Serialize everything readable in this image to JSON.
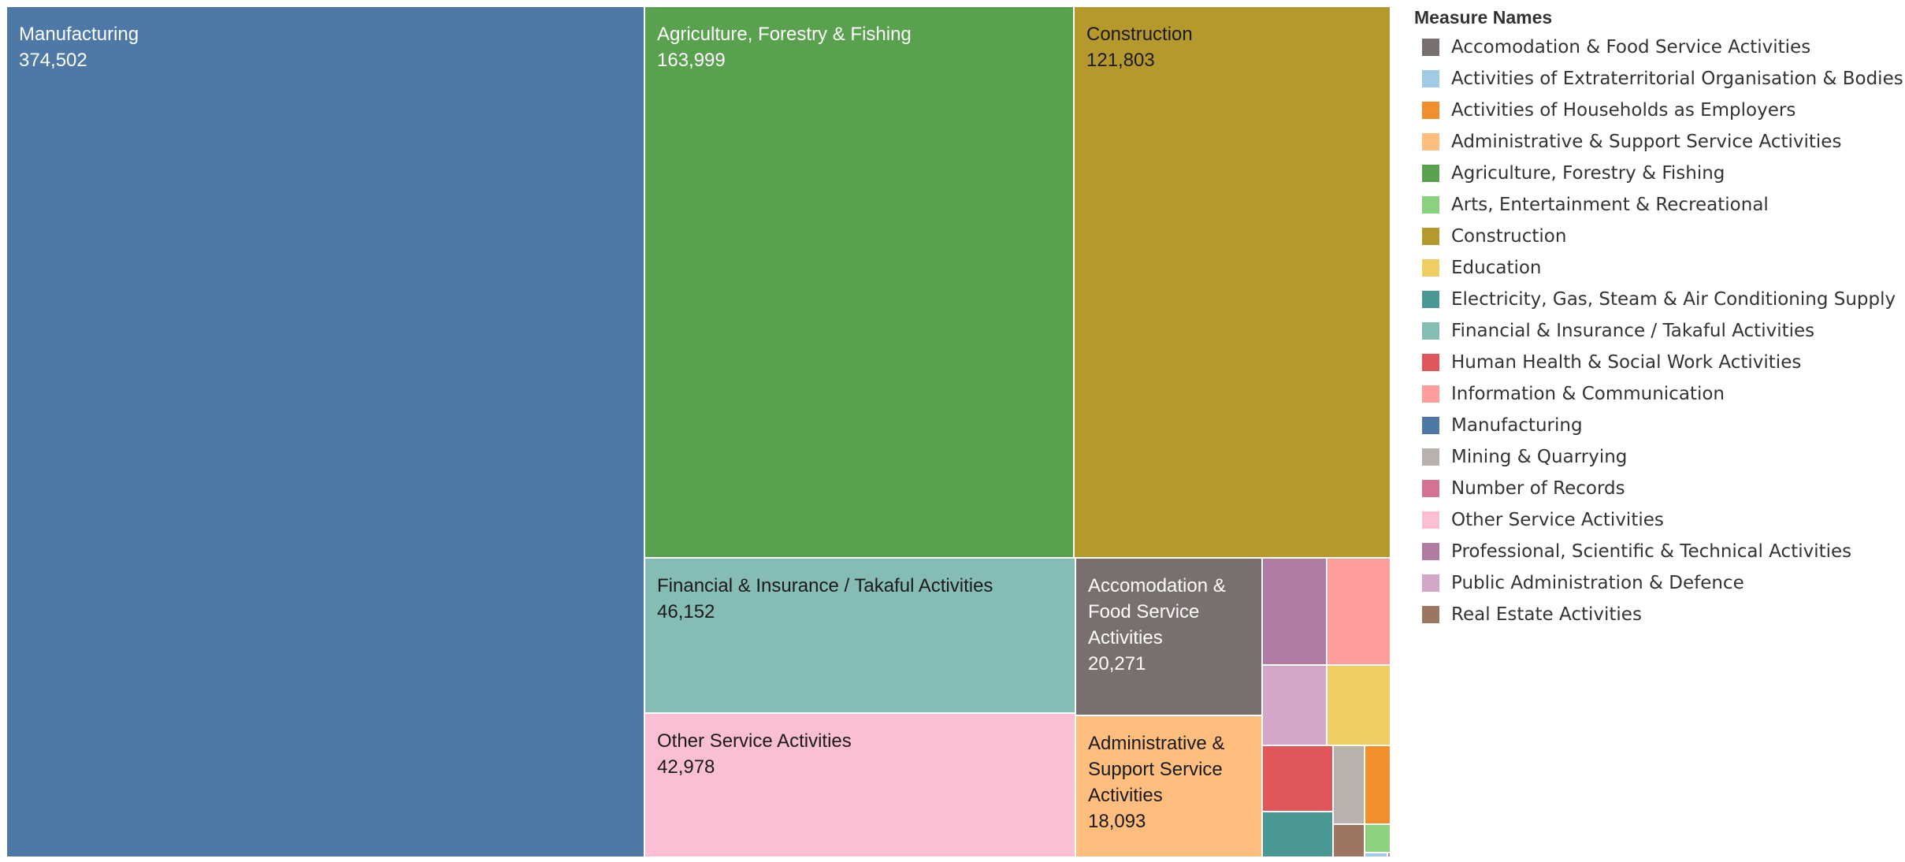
{
  "chart_data": {
    "type": "treemap",
    "legend": {
      "title": "Measure Names",
      "position": "right",
      "items": [
        {
          "label": "Accomodation & Food Service Activities",
          "color": "#79706e"
        },
        {
          "label": "Activities of Extraterritorial Organisation & Bodies",
          "color": "#a0cbe8"
        },
        {
          "label": "Activities of Households as Employers",
          "color": "#f28e2b"
        },
        {
          "label": "Administrative & Support Service Activities",
          "color": "#ffbe7d"
        },
        {
          "label": "Agriculture, Forestry & Fishing",
          "color": "#59a14f"
        },
        {
          "label": "Arts, Entertainment & Recreational",
          "color": "#8cd17d"
        },
        {
          "label": "Construction",
          "color": "#b6992d"
        },
        {
          "label": "Education",
          "color": "#f1ce63"
        },
        {
          "label": "Electricity, Gas, Steam & Air Conditioning Supply",
          "color": "#499894"
        },
        {
          "label": "Financial & Insurance / Takaful Activities",
          "color": "#86bcb6"
        },
        {
          "label": "Human Health & Social Work Activities",
          "color": "#e15759"
        },
        {
          "label": "Information & Communication",
          "color": "#ff9d9a"
        },
        {
          "label": "Manufacturing",
          "color": "#4e79a7"
        },
        {
          "label": "Mining & Quarrying",
          "color": "#bab0ac"
        },
        {
          "label": "Number of Records",
          "color": "#d37295"
        },
        {
          "label": "Other Service Activities",
          "color": "#fabfd2"
        },
        {
          "label": "Professional, Scientific & Technical Activities",
          "color": "#b07aa1"
        },
        {
          "label": "Public Administration & Defence",
          "color": "#d4a6c8"
        },
        {
          "label": "Real Estate Activities",
          "color": "#9d7660"
        }
      ]
    },
    "cells": [
      {
        "name": "Manufacturing",
        "value": 374502,
        "value_label": "374,502",
        "label_lines": [
          "Manufacturing"
        ],
        "color": "#4e79a7",
        "text_color": "#ffffff"
      },
      {
        "name": "Agriculture, Forestry & Fishing",
        "value": 163999,
        "value_label": "163,999",
        "label_lines": [
          "Agriculture, Forestry & Fishing"
        ],
        "color": "#59a14f",
        "text_color": "#ffffff"
      },
      {
        "name": "Construction",
        "value": 121803,
        "value_label": "121,803",
        "label_lines": [
          "Construction"
        ],
        "color": "#b6992d",
        "text_color": "#1a1a1a"
      },
      {
        "name": "Financial & Insurance / Takaful Activities",
        "value": 46152,
        "value_label": "46,152",
        "label_lines": [
          "Financial & Insurance / Takaful Activities"
        ],
        "color": "#86bcb6",
        "text_color": "#1a1a1a"
      },
      {
        "name": "Other Service Activities",
        "value": 42978,
        "value_label": "42,978",
        "label_lines": [
          "Other Service Activities"
        ],
        "color": "#fabfd2",
        "text_color": "#1a1a1a"
      },
      {
        "name": "Accomodation & Food Service Activities",
        "value": 20271,
        "value_label": "20,271",
        "label_lines": [
          "Accomodation &",
          "Food Service",
          "Activities"
        ],
        "color": "#79706e",
        "text_color": "#ffffff"
      },
      {
        "name": "Administrative & Support Service Activities",
        "value": 18093,
        "value_label": "18,093",
        "label_lines": [
          "Administrative &",
          "Support Service",
          "Activities"
        ],
        "color": "#ffbe7d",
        "text_color": "#1a1a1a"
      },
      {
        "name": "Professional, Scientific & Technical Activities",
        "value": 8100,
        "color": "#b07aa1"
      },
      {
        "name": "Information & Communication",
        "value": 7900,
        "color": "#ff9d9a"
      },
      {
        "name": "Public Administration & Defence",
        "value": 5900,
        "color": "#d4a6c8"
      },
      {
        "name": "Education",
        "value": 5800,
        "color": "#f1ce63"
      },
      {
        "name": "Human Health & Social Work Activities",
        "value": 5000,
        "color": "#e15759"
      },
      {
        "name": "Mining & Quarrying",
        "value": 3200,
        "color": "#bab0ac"
      },
      {
        "name": "Activities of Households as Employers",
        "value": 2800,
        "color": "#f28e2b"
      },
      {
        "name": "Electricity, Gas, Steam & Air Conditioning Supply",
        "value": 3000,
        "color": "#499894"
      },
      {
        "name": "Real Estate Activities",
        "value": 1400,
        "color": "#9d7660"
      },
      {
        "name": "Arts, Entertainment & Recreational",
        "value": 1100,
        "color": "#8cd17d"
      },
      {
        "name": "Activities of Extraterritorial Organisation & Bodies",
        "value": 250,
        "color": "#a0cbe8"
      },
      {
        "name": "Number of Records",
        "value": 60,
        "color": "#d37295"
      }
    ]
  }
}
